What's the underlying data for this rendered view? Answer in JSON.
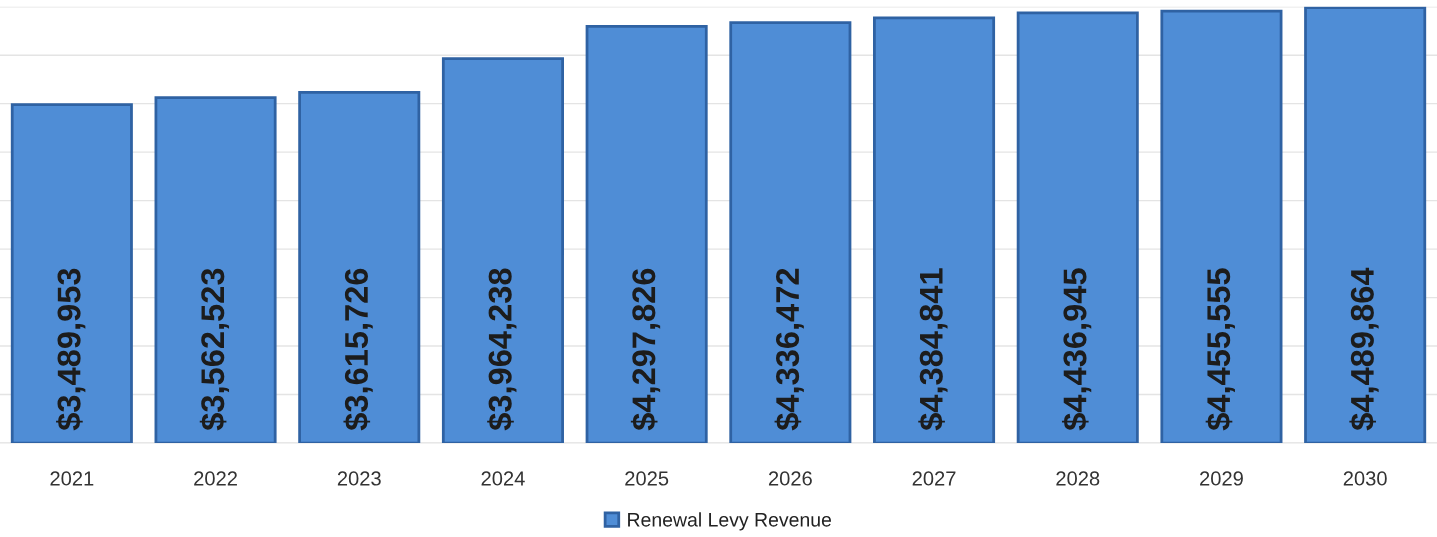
{
  "chart_data": {
    "type": "bar",
    "categories": [
      "2021",
      "2022",
      "2023",
      "2024",
      "2025",
      "2026",
      "2027",
      "2028",
      "2029",
      "2030"
    ],
    "series": [
      {
        "name": "Renewal Levy Revenue",
        "color": "#4f8dd6",
        "values": [
          3489953,
          3562523,
          3615726,
          3964238,
          4297826,
          4336472,
          4384841,
          4436945,
          4455555,
          4489864
        ],
        "value_labels": [
          "$3,489,953",
          "$3,562,523",
          "$3,615,726",
          "$3,964,238",
          "$4,297,826",
          "$4,336,472",
          "$4,384,841",
          "$4,436,945",
          "$4,455,555",
          "$4,489,864"
        ]
      }
    ],
    "ylim": [
      0,
      4500000
    ],
    "yticks": [
      {
        "value": 0,
        "label": null
      },
      {
        "value": 500000,
        "label": null
      },
      {
        "value": 1000000,
        "label": null
      },
      {
        "value": 1500000,
        "label": null
      },
      {
        "value": 2000000,
        "label": null
      },
      {
        "value": 2500000,
        "label": null
      },
      {
        "value": 3000000,
        "label": null
      },
      {
        "value": 3500000,
        "label": null
      },
      {
        "value": 4000000,
        "label": null
      },
      {
        "value": 4500000,
        "label": null
      }
    ],
    "grid": "y",
    "legend": "bottom",
    "tick_labels": "x"
  }
}
